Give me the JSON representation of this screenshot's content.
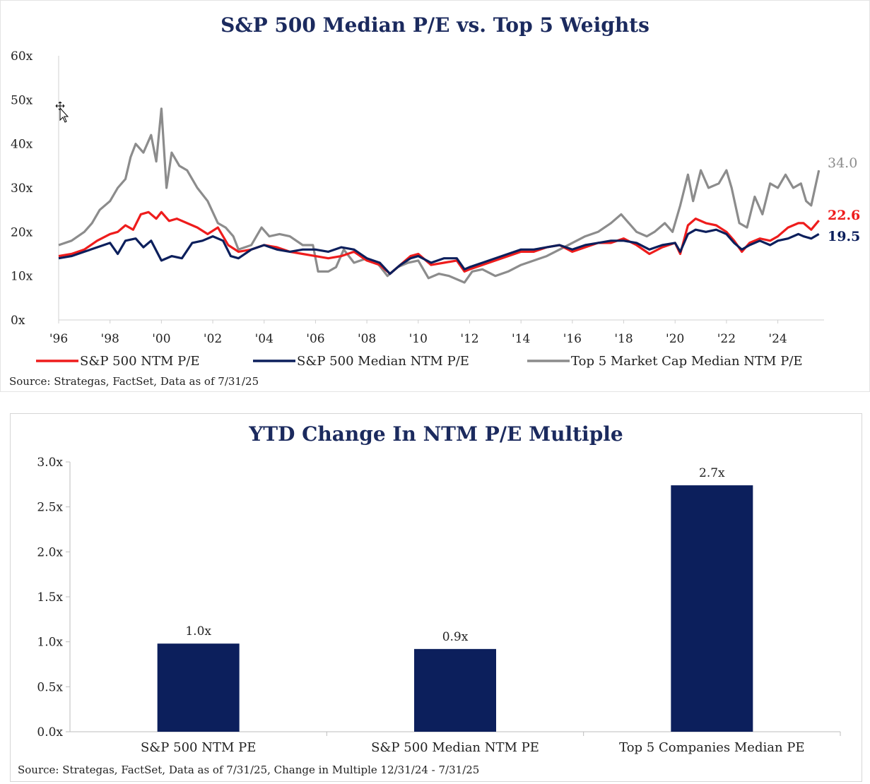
{
  "chart_data": [
    {
      "type": "line",
      "title": "S&P 500 Median P/E vs. Top 5 Weights",
      "source": "Source: Strategas, FactSet, Data as of 7/31/25",
      "ylim": [
        0,
        60
      ],
      "y_ticks": [
        "0x",
        "10x",
        "20x",
        "30x",
        "40x",
        "50x",
        "60x"
      ],
      "xlim": [
        1996,
        2025.8
      ],
      "x_ticks": [
        "'96",
        "'98",
        "'00",
        "'02",
        "'04",
        "'06",
        "'08",
        "'10",
        "'12",
        "'14",
        "'16",
        "'18",
        "'20",
        "'22",
        "'24"
      ],
      "legend_position": "bottom",
      "series": [
        {
          "name": "S&P 500 NTM P/E",
          "color": "#ee1c1c",
          "end_label": "22.6",
          "points": [
            [
              1996,
              14.5
            ],
            [
              1996.5,
              15
            ],
            [
              1997,
              16
            ],
            [
              1997.5,
              18
            ],
            [
              1998,
              19.5
            ],
            [
              1998.3,
              20
            ],
            [
              1998.6,
              21.5
            ],
            [
              1998.9,
              20.5
            ],
            [
              1999.2,
              24
            ],
            [
              1999.5,
              24.5
            ],
            [
              1999.8,
              23
            ],
            [
              2000,
              24.5
            ],
            [
              2000.3,
              22.5
            ],
            [
              2000.6,
              23
            ],
            [
              2001,
              22
            ],
            [
              2001.4,
              21
            ],
            [
              2001.8,
              19.5
            ],
            [
              2002.2,
              21
            ],
            [
              2002.6,
              17
            ],
            [
              2003,
              15.5
            ],
            [
              2003.5,
              16
            ],
            [
              2004,
              17
            ],
            [
              2004.5,
              16.5
            ],
            [
              2005,
              15.5
            ],
            [
              2005.5,
              15
            ],
            [
              2006,
              14.5
            ],
            [
              2006.5,
              14
            ],
            [
              2007,
              14.5
            ],
            [
              2007.5,
              15.5
            ],
            [
              2008,
              13.5
            ],
            [
              2008.5,
              12.5
            ],
            [
              2008.9,
              10.5
            ],
            [
              2009.3,
              12.5
            ],
            [
              2009.7,
              14.5
            ],
            [
              2010,
              15
            ],
            [
              2010.5,
              12.5
            ],
            [
              2011,
              13
            ],
            [
              2011.5,
              13.5
            ],
            [
              2011.8,
              11
            ],
            [
              2012,
              11.5
            ],
            [
              2012.5,
              12.5
            ],
            [
              2013,
              13.5
            ],
            [
              2013.5,
              14.5
            ],
            [
              2014,
              15.5
            ],
            [
              2014.5,
              15.5
            ],
            [
              2015,
              16.5
            ],
            [
              2015.5,
              17
            ],
            [
              2016,
              15.5
            ],
            [
              2016.5,
              16.5
            ],
            [
              2017,
              17.5
            ],
            [
              2017.5,
              17.5
            ],
            [
              2018,
              18.5
            ],
            [
              2018.5,
              17
            ],
            [
              2019,
              15
            ],
            [
              2019.5,
              16.5
            ],
            [
              2020,
              17.5
            ],
            [
              2020.2,
              15
            ],
            [
              2020.5,
              21.5
            ],
            [
              2020.8,
              23
            ],
            [
              2021.2,
              22
            ],
            [
              2021.6,
              21.5
            ],
            [
              2022,
              20
            ],
            [
              2022.3,
              18
            ],
            [
              2022.6,
              15.5
            ],
            [
              2022.9,
              17.5
            ],
            [
              2023.3,
              18.5
            ],
            [
              2023.7,
              18
            ],
            [
              2024,
              19
            ],
            [
              2024.4,
              21
            ],
            [
              2024.8,
              22
            ],
            [
              2025,
              22
            ],
            [
              2025.3,
              20.5
            ],
            [
              2025.6,
              22.6
            ]
          ]
        },
        {
          "name": "S&P 500 Median NTM P/E",
          "color": "#0c1f5c",
          "end_label": "19.5",
          "points": [
            [
              1996,
              14
            ],
            [
              1996.5,
              14.5
            ],
            [
              1997,
              15.5
            ],
            [
              1997.5,
              16.5
            ],
            [
              1998,
              17.5
            ],
            [
              1998.3,
              15
            ],
            [
              1998.6,
              18
            ],
            [
              1999,
              18.5
            ],
            [
              1999.3,
              16.5
            ],
            [
              1999.6,
              18
            ],
            [
              2000,
              13.5
            ],
            [
              2000.4,
              14.5
            ],
            [
              2000.8,
              14
            ],
            [
              2001.2,
              17.5
            ],
            [
              2001.6,
              18
            ],
            [
              2002,
              19
            ],
            [
              2002.4,
              18
            ],
            [
              2002.7,
              14.5
            ],
            [
              2003,
              14
            ],
            [
              2003.5,
              16
            ],
            [
              2004,
              17
            ],
            [
              2004.5,
              16
            ],
            [
              2005,
              15.5
            ],
            [
              2005.5,
              16
            ],
            [
              2006,
              16
            ],
            [
              2006.5,
              15.5
            ],
            [
              2007,
              16.5
            ],
            [
              2007.5,
              16
            ],
            [
              2008,
              14
            ],
            [
              2008.5,
              13
            ],
            [
              2008.9,
              10.5
            ],
            [
              2009.3,
              12.5
            ],
            [
              2009.7,
              14
            ],
            [
              2010,
              14.5
            ],
            [
              2010.5,
              13
            ],
            [
              2011,
              14
            ],
            [
              2011.5,
              14
            ],
            [
              2011.8,
              11.5
            ],
            [
              2012,
              12
            ],
            [
              2012.5,
              13
            ],
            [
              2013,
              14
            ],
            [
              2013.5,
              15
            ],
            [
              2014,
              16
            ],
            [
              2014.5,
              16
            ],
            [
              2015,
              16.5
            ],
            [
              2015.5,
              17
            ],
            [
              2016,
              16
            ],
            [
              2016.5,
              17
            ],
            [
              2017,
              17.5
            ],
            [
              2017.5,
              18
            ],
            [
              2018,
              18
            ],
            [
              2018.5,
              17.5
            ],
            [
              2019,
              16
            ],
            [
              2019.5,
              17
            ],
            [
              2020,
              17.5
            ],
            [
              2020.2,
              15.5
            ],
            [
              2020.5,
              19.5
            ],
            [
              2020.8,
              20.5
            ],
            [
              2021.2,
              20
            ],
            [
              2021.6,
              20.5
            ],
            [
              2022,
              19.5
            ],
            [
              2022.3,
              17.5
            ],
            [
              2022.6,
              16
            ],
            [
              2022.9,
              17
            ],
            [
              2023.3,
              18
            ],
            [
              2023.7,
              17
            ],
            [
              2024,
              18
            ],
            [
              2024.4,
              18.5
            ],
            [
              2024.8,
              19.5
            ],
            [
              2025,
              19
            ],
            [
              2025.3,
              18.5
            ],
            [
              2025.6,
              19.5
            ]
          ]
        },
        {
          "name": "Top 5 Market Cap Median NTM P/E",
          "color": "#8c8c8c",
          "end_label": "34.0",
          "points": [
            [
              1996,
              17
            ],
            [
              1996.5,
              18
            ],
            [
              1997,
              20
            ],
            [
              1997.3,
              22
            ],
            [
              1997.6,
              25
            ],
            [
              1998,
              27
            ],
            [
              1998.3,
              30
            ],
            [
              1998.6,
              32
            ],
            [
              1998.8,
              37
            ],
            [
              1999,
              40
            ],
            [
              1999.3,
              38
            ],
            [
              1999.6,
              42
            ],
            [
              1999.8,
              36
            ],
            [
              2000,
              48
            ],
            [
              2000.2,
              30
            ],
            [
              2000.4,
              38
            ],
            [
              2000.7,
              35
            ],
            [
              2001,
              34
            ],
            [
              2001.4,
              30
            ],
            [
              2001.8,
              27
            ],
            [
              2002.2,
              22
            ],
            [
              2002.5,
              21
            ],
            [
              2002.8,
              19
            ],
            [
              2003,
              16
            ],
            [
              2003.5,
              17
            ],
            [
              2003.9,
              21
            ],
            [
              2004.2,
              19
            ],
            [
              2004.6,
              19.5
            ],
            [
              2005,
              19
            ],
            [
              2005.5,
              17
            ],
            [
              2005.9,
              17
            ],
            [
              2006.1,
              11
            ],
            [
              2006.5,
              11
            ],
            [
              2006.8,
              12
            ],
            [
              2007.1,
              16
            ],
            [
              2007.5,
              13
            ],
            [
              2008,
              14
            ],
            [
              2008.4,
              13
            ],
            [
              2008.8,
              10
            ],
            [
              2009.2,
              12
            ],
            [
              2009.6,
              13
            ],
            [
              2010,
              13.5
            ],
            [
              2010.4,
              9.5
            ],
            [
              2010.8,
              10.5
            ],
            [
              2011.2,
              10
            ],
            [
              2011.6,
              9
            ],
            [
              2011.8,
              8.5
            ],
            [
              2012.1,
              11
            ],
            [
              2012.5,
              11.5
            ],
            [
              2013,
              10
            ],
            [
              2013.5,
              11
            ],
            [
              2014,
              12.5
            ],
            [
              2014.5,
              13.5
            ],
            [
              2015,
              14.5
            ],
            [
              2015.5,
              16
            ],
            [
              2016,
              17.5
            ],
            [
              2016.5,
              19
            ],
            [
              2017,
              20
            ],
            [
              2017.5,
              22
            ],
            [
              2017.9,
              24
            ],
            [
              2018.2,
              22
            ],
            [
              2018.5,
              20
            ],
            [
              2018.9,
              19
            ],
            [
              2019.2,
              20
            ],
            [
              2019.6,
              22
            ],
            [
              2019.9,
              20
            ],
            [
              2020.2,
              26
            ],
            [
              2020.5,
              33
            ],
            [
              2020.7,
              27
            ],
            [
              2021,
              34
            ],
            [
              2021.3,
              30
            ],
            [
              2021.7,
              31
            ],
            [
              2022,
              34
            ],
            [
              2022.2,
              30
            ],
            [
              2022.5,
              22
            ],
            [
              2022.8,
              21
            ],
            [
              2023.1,
              28
            ],
            [
              2023.4,
              24
            ],
            [
              2023.7,
              31
            ],
            [
              2024,
              30
            ],
            [
              2024.3,
              33
            ],
            [
              2024.6,
              30
            ],
            [
              2024.9,
              31
            ],
            [
              2025.1,
              27
            ],
            [
              2025.3,
              26
            ],
            [
              2025.6,
              34
            ]
          ]
        }
      ]
    },
    {
      "type": "bar",
      "title": "YTD Change In NTM P/E Multiple",
      "source": "Source: Strategas, FactSet, Data as of 7/31/25, Change in Multiple 12/31/24 - 7/31/25",
      "ylim": [
        0,
        3.0
      ],
      "y_ticks": [
        "0.0x",
        "0.5x",
        "1.0x",
        "1.5x",
        "2.0x",
        "2.5x",
        "3.0x"
      ],
      "categories": [
        "S&P 500 NTM PE",
        "S&P 500 Median NTM PE",
        "Top 5 Companies Median PE"
      ],
      "values": [
        0.98,
        0.92,
        2.74
      ],
      "data_labels": [
        "1.0x",
        "0.9x",
        "2.7x"
      ],
      "color": "#0c1f5c"
    }
  ]
}
